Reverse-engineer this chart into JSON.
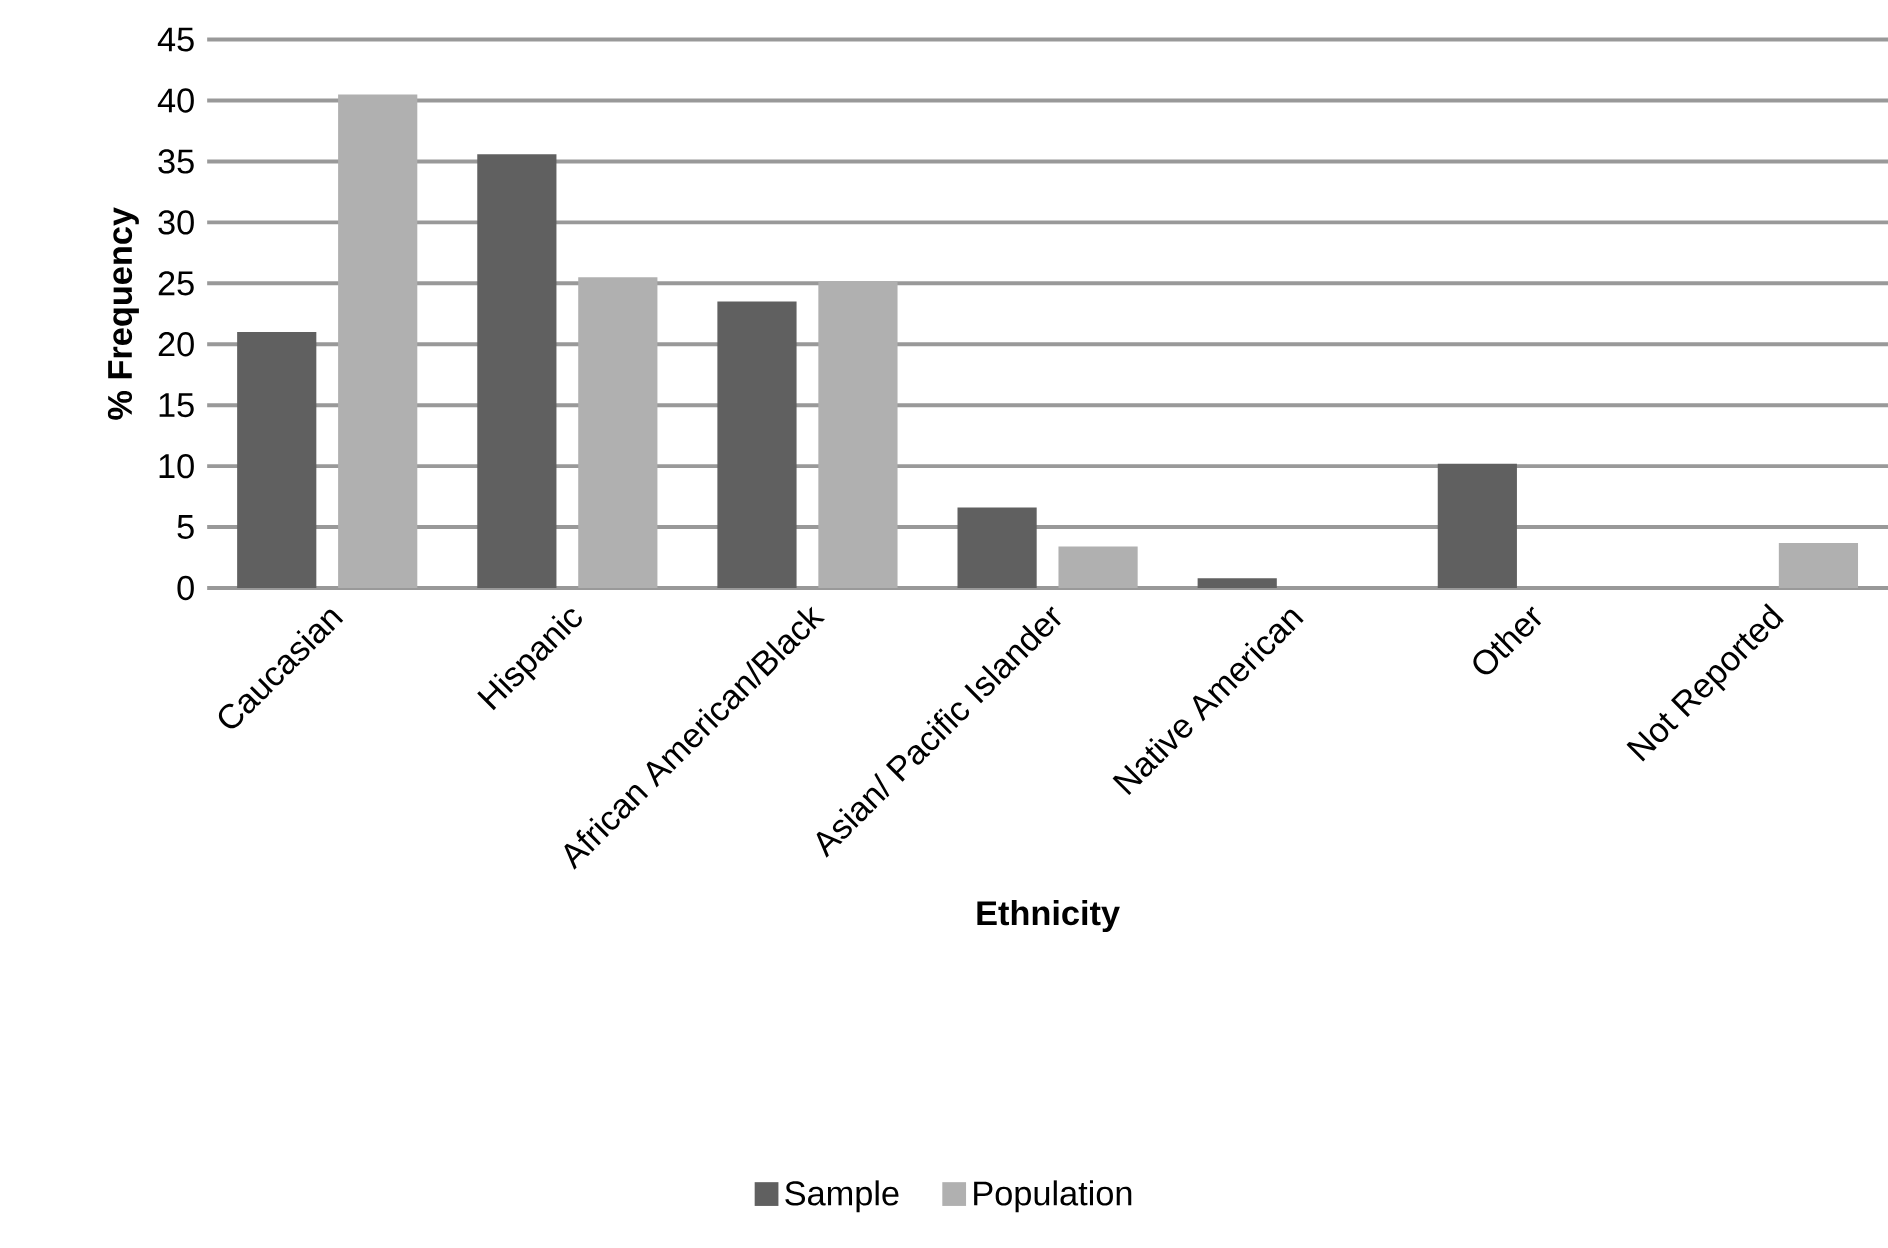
{
  "chart_data": {
    "type": "bar",
    "xlabel": "Ethnicity",
    "ylabel": "% Frequency",
    "categories": [
      "Caucasian",
      "Hispanic",
      "African American/Black",
      "Asian/ Pacific Islander",
      "Native American",
      "Other",
      "Not Reported"
    ],
    "series": [
      {
        "name": "Sample",
        "color": "#606060",
        "values": [
          21,
          35.6,
          23.5,
          6.6,
          0.8,
          10.2,
          0
        ]
      },
      {
        "name": "Population",
        "color": "#b0b0b0",
        "values": [
          40.5,
          25.5,
          25.2,
          3.4,
          0,
          0,
          3.7
        ]
      }
    ],
    "ylim": [
      0,
      45
    ],
    "yticks": [
      0,
      5,
      10,
      15,
      20,
      25,
      30,
      35,
      40,
      45
    ],
    "grid": "y",
    "legend": "bottom"
  }
}
